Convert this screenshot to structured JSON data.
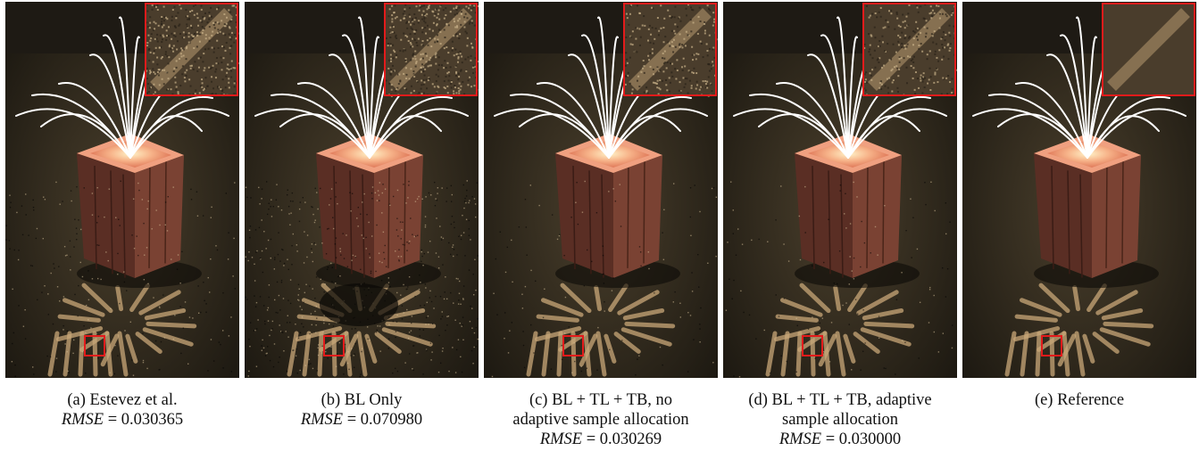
{
  "panels": [
    {
      "id": "a",
      "noise": "medium",
      "caption_lines": [
        "(a) Estevez et al."
      ],
      "rmse_label": "RMSE",
      "rmse_eq": "= 0.030365"
    },
    {
      "id": "b",
      "noise": "high",
      "caption_lines": [
        "(b) BL Only"
      ],
      "rmse_label": "RMSE",
      "rmse_eq": "= 0.070980"
    },
    {
      "id": "c",
      "noise": "low",
      "caption_lines": [
        "(c) BL + TL + TB, no",
        "adaptive sample allocation"
      ],
      "rmse_label": "RMSE",
      "rmse_eq": "= 0.030269"
    },
    {
      "id": "d",
      "noise": "low",
      "caption_lines": [
        "(d) BL + TL + TB, adaptive",
        "sample allocation"
      ],
      "rmse_label": "RMSE",
      "rmse_eq": "= 0.030000"
    },
    {
      "id": "e",
      "noise": "none",
      "caption_lines": [
        "(e) Reference"
      ],
      "rmse_label": "",
      "rmse_eq": ""
    }
  ],
  "colors": {
    "background_dark": "#1b1812",
    "floor": "#3a3224",
    "box_top": "#f0a080",
    "box_side": "#6e3a2c",
    "highlight_box": "#e31b1b",
    "strands": "#ffffff",
    "caustic": "#c9a778"
  }
}
